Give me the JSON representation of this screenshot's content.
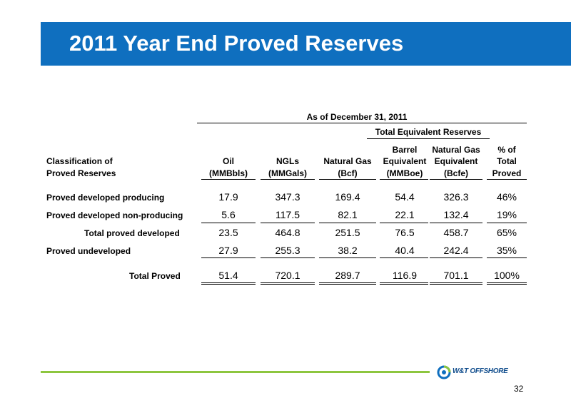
{
  "title": "2011 Year End Proved Reserves",
  "header": {
    "as_of": "As of December 31, 2011",
    "total_equivalent": "Total Equivalent Reserves"
  },
  "columns": [
    {
      "l1": "",
      "l2": "Classification of",
      "l3": "Proved Reserves"
    },
    {
      "l1": "",
      "l2": "Oil",
      "l3": "(MMBbls)"
    },
    {
      "l1": "",
      "l2": "NGLs",
      "l3": "(MMGals)"
    },
    {
      "l1": "",
      "l2": "Natural Gas",
      "l3": "(Bcf)"
    },
    {
      "l1": "Barrel",
      "l2": "Equivalent",
      "l3": "(MMBoe)"
    },
    {
      "l1": "Natural Gas",
      "l2": "Equivalent",
      "l3": "(Bcfe)"
    },
    {
      "l1": "% of",
      "l2": "Total",
      "l3": "Proved"
    }
  ],
  "rows": [
    {
      "label": "Proved developed producing",
      "values": [
        "17.9",
        "347.3",
        "169.4",
        "54.4",
        "326.3",
        "46%"
      ]
    },
    {
      "label": "Proved developed non-producing",
      "values": [
        "5.6",
        "117.5",
        "82.1",
        "22.1",
        "132.4",
        "19%"
      ]
    },
    {
      "label": "Total proved developed",
      "values": [
        "23.5",
        "464.8",
        "251.5",
        "76.5",
        "458.7",
        "65%"
      ]
    },
    {
      "label": "Proved undeveloped",
      "values": [
        "27.9",
        "255.3",
        "38.2",
        "40.4",
        "242.4",
        "35%"
      ]
    },
    {
      "label": "Total Proved",
      "values": [
        "51.4",
        "720.1",
        "289.7",
        "116.9",
        "701.1",
        "100%"
      ]
    }
  ],
  "footer": {
    "logo_text": "W&T OFFSHORE",
    "page_number": "32"
  },
  "colors": {
    "title_bar": "#0f6fbf",
    "footer_line": "#8dc63f"
  }
}
